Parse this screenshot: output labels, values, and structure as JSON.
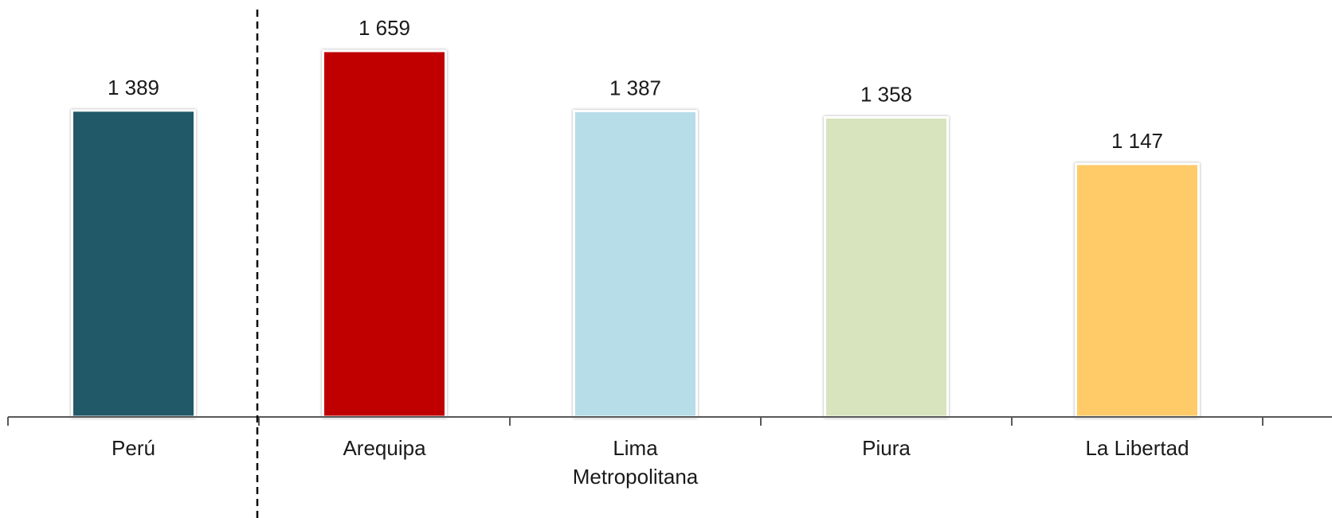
{
  "chart_data": {
    "type": "bar",
    "categories": [
      "Perú",
      "Arequipa",
      "Lima Metropolitana",
      "Piura",
      "La Libertad"
    ],
    "category_lines": [
      [
        "Perú"
      ],
      [
        "Arequipa"
      ],
      [
        "Lima",
        "Metropolitana"
      ],
      [
        "Piura"
      ],
      [
        "La Libertad"
      ]
    ],
    "values": [
      1389,
      1659,
      1387,
      1358,
      1147
    ],
    "value_labels": [
      "1 389",
      "1 659",
      "1 387",
      "1 358",
      "1 147"
    ],
    "colors": [
      "#215968",
      "#c00000",
      "#b7dde8",
      "#d7e4bd",
      "#ffcb69"
    ],
    "ylim": [
      0,
      1659
    ],
    "grid": false,
    "separator_after_category": "Perú"
  }
}
